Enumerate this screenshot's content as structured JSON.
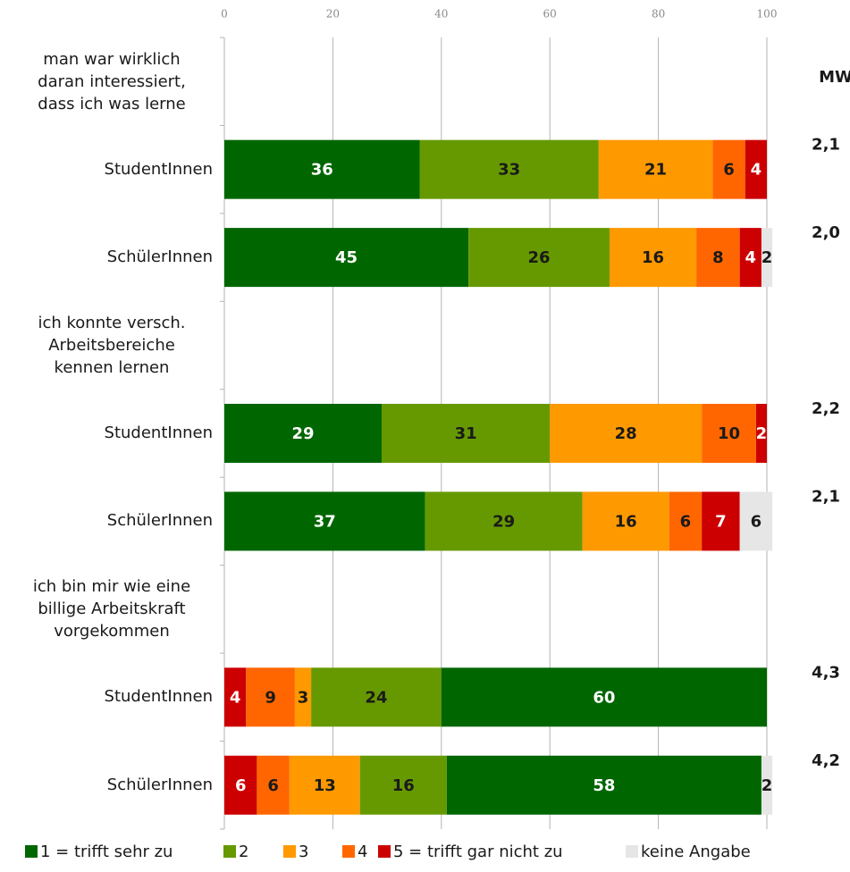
{
  "chart_data": {
    "type": "stacked_bar_horizontal",
    "categories": [
      "man war wirklich\ndaran interessiert,\ndass ich was lerne",
      "StudentInnen",
      "SchülerInnen",
      "ich konnte versch.\nArbeitsbereiche\nkennen lernen",
      "StudentInnen",
      "SchülerInnen",
      "ich bin mir wie eine\nbillige Arbeitskraft\nvorgekommen",
      "StudentInnen",
      "SchülerInnen"
    ],
    "reversed": [
      false,
      false,
      false,
      false,
      false,
      false,
      false,
      true,
      true
    ],
    "series": [
      {
        "name": "1 = trifft sehr zu",
        "color": "#006600",
        "label_color": "#ffffff",
        "values": [
          null,
          36,
          45,
          null,
          29,
          37,
          null,
          60,
          58
        ]
      },
      {
        "name": "2",
        "color": "#669900",
        "label_color": "#1a1a1a",
        "values": [
          null,
          33,
          26,
          null,
          31,
          29,
          null,
          24,
          16
        ]
      },
      {
        "name": "3",
        "color": "#ff9900",
        "label_color": "#1a1a1a",
        "values": [
          null,
          21,
          16,
          null,
          28,
          16,
          null,
          3,
          13
        ]
      },
      {
        "name": "4",
        "color": "#ff6600",
        "label_color": "#1a1a1a",
        "values": [
          null,
          6,
          8,
          null,
          10,
          6,
          null,
          9,
          6
        ]
      },
      {
        "name": "5 = trifft gar nicht zu",
        "color": "#cc0000",
        "label_color": "#ffffff",
        "values": [
          null,
          4,
          4,
          null,
          2,
          7,
          null,
          4,
          6
        ]
      },
      {
        "name": "keine Angabe",
        "color": "#e6e6e6",
        "label_color": "#1a1a1a",
        "values": [
          null,
          null,
          2,
          null,
          null,
          6,
          null,
          null,
          2
        ]
      }
    ],
    "mw": {
      "label": "MW",
      "values": [
        null,
        2.1,
        2.0,
        null,
        2.2,
        2.1,
        null,
        4.3,
        4.2
      ],
      "value_labels": [
        null,
        "2,1",
        "2,0",
        null,
        "2,2",
        "2,1",
        null,
        "4,3",
        "4,2"
      ]
    },
    "xlim": [
      0,
      100
    ],
    "xticks": [
      0,
      20,
      40,
      60,
      80,
      100
    ],
    "grid": true
  }
}
